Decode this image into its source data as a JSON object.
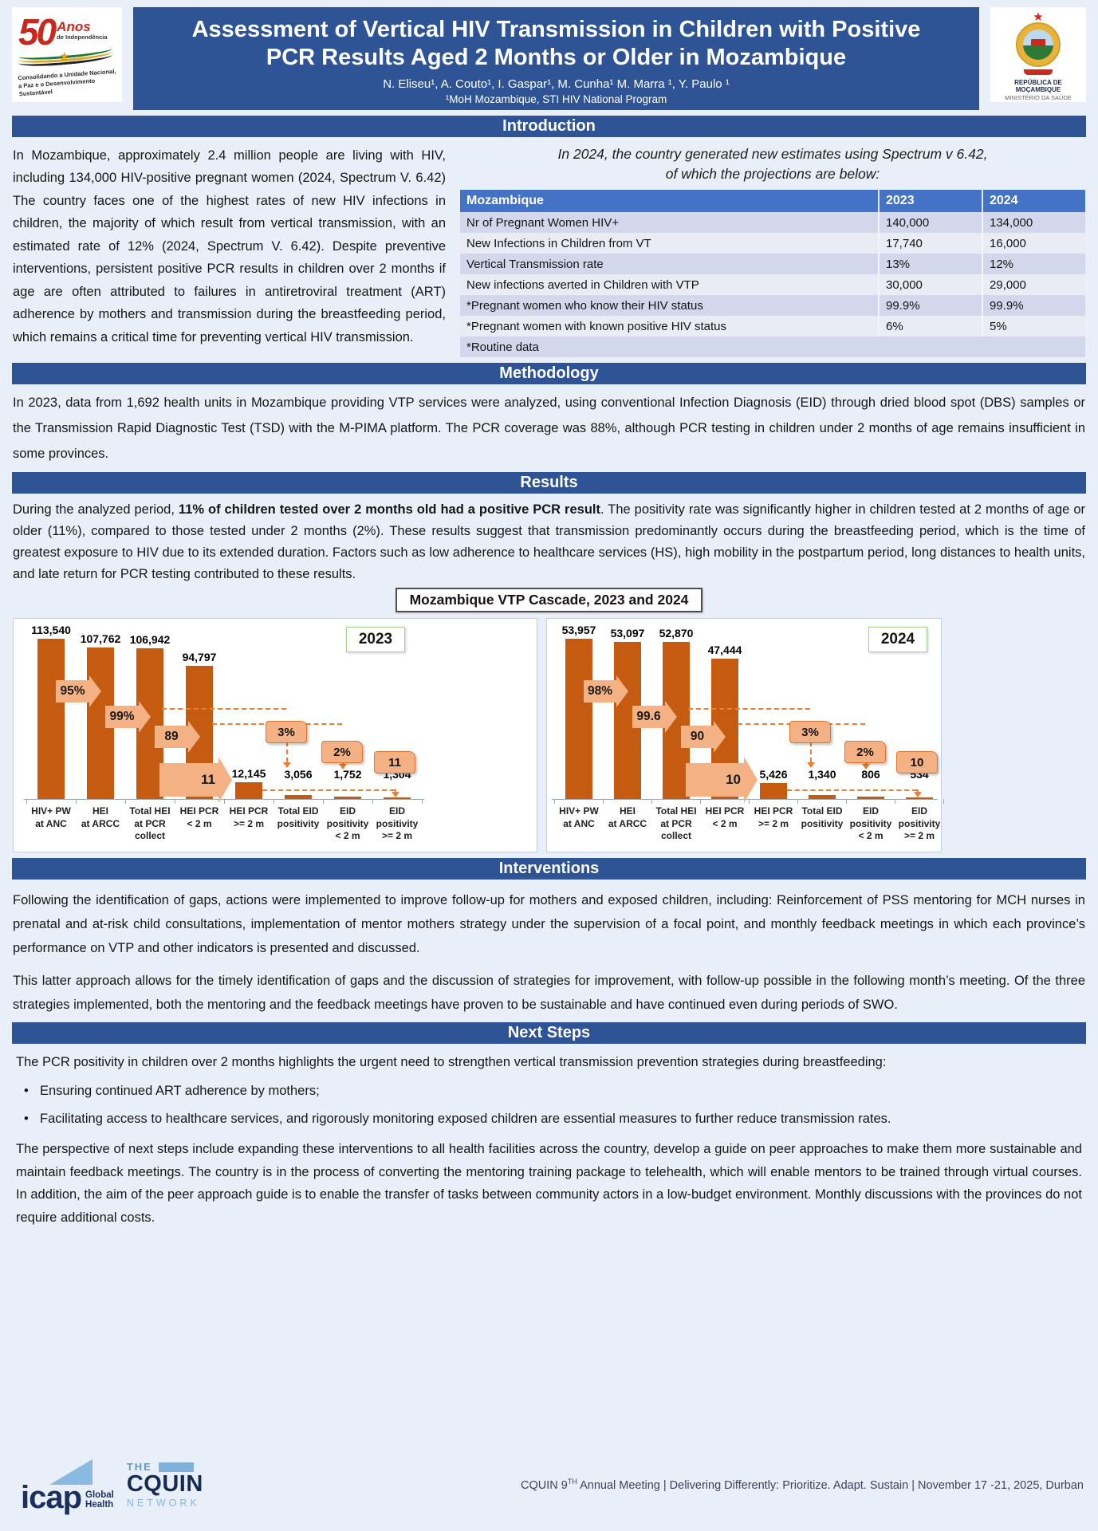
{
  "colors": {
    "accent_blue": "#2e5496",
    "table_header_blue": "#4472c4",
    "row_alt_dark": "#d2d7eb",
    "row_alt_light": "#e9ebf5",
    "bar_orange": "#c55a11",
    "arrow_peach": "#f4b183",
    "dashed_orange": "#ed7d31",
    "year_border_green": "#a9d18e",
    "navy": "#1b2f5e",
    "light_blue": "#8ab9e2",
    "page_bg": "#e9eff8"
  },
  "header": {
    "title_line1": "Assessment of Vertical HIV Transmission in Children with Positive",
    "title_line2": "PCR Results Aged 2 Months or Older in Mozambique",
    "authors": "N. Eliseu¹, A. Couto¹, I. Gaspar¹, M. Cunha¹ M. Marra ¹, Y. Paulo ¹",
    "affiliation": "¹MoH Mozambique, STI HIV National Program",
    "logo_left": {
      "line1": "50",
      "line2": "Anos",
      "line3": "de Independência",
      "tagline1": "Consolidando a Unidade Nacional,",
      "tagline2": "a Paz e o Desenvolvimento Sustentável"
    },
    "logo_right": {
      "line1": "REPÚBLICA DE MOÇAMBIQUE",
      "line2": "MINISTÉRIO DA SAÚDE"
    }
  },
  "introduction": {
    "heading": "Introduction",
    "paragraph": "In Mozambique, approximately 2.4 million people are living with HIV, including 134,000 HIV-positive pregnant women (2024, Spectrum V. 6.42) The country faces one of the highest rates of new HIV infections in children, the majority of which result from vertical transmission, with an estimated rate of 12% (2024, Spectrum V. 6.42). Despite preventive interventions, persistent positive PCR results in children over 2 months if age are often attributed to failures in antiretroviral treatment (ART) adherence by mothers and transmission during the breastfeeding period, which remains a critical time for preventing vertical HIV transmission.",
    "table_caption_line1": "In 2024, the country generated new estimates using Spectrum v 6.42,",
    "table_caption_line2": "of which the projections are below:",
    "table": {
      "header": [
        "Mozambique",
        "2023",
        "2024"
      ],
      "rows": [
        [
          "Nr of Pregnant Women HIV+",
          "140,000",
          "134,000"
        ],
        [
          "New Infections in Children from VT",
          "17,740",
          "16,000"
        ],
        [
          "Vertical Transmission rate",
          "13%",
          "12%"
        ],
        [
          "New infections averted in Children with VTP",
          "30,000",
          "29,000"
        ],
        [
          "*Pregnant women who know their HIV status",
          "99.9%",
          "99.9%"
        ],
        [
          "*Pregnant women with known positive HIV status",
          "6%",
          "5%"
        ],
        [
          "*Routine data",
          "",
          ""
        ]
      ]
    }
  },
  "methodology": {
    "heading": "Methodology",
    "paragraph": "In 2023, data from 1,692 health units in Mozambique providing VTP services were analyzed, using conventional Infection Diagnosis (EID) through dried blood spot (DBS) samples or the Transmission Rapid Diagnostic Test (TSD) with the M-PIMA platform. The PCR coverage was 88%, although PCR testing in children under 2 months of age remains insufficient in some provinces."
  },
  "results": {
    "heading": "Results",
    "p_pre": "During the analyzed period, ",
    "p_bold": "11% of children tested over 2 months old had a positive PCR result",
    "p_post": ". The positivity rate was significantly higher in children tested at 2 months of age or older (11%), compared to those tested under 2 months (2%). These results suggest that transmission predominantly occurs during the breastfeeding period, which is the time of greatest exposure to HIV due to its extended duration. Factors such as low adherence to healthcare services (HS), high mobility in the postpartum period, long distances to health units, and late return for PCR testing contributed to these results.",
    "chart_box_title": "Mozambique VTP Cascade, 2023 and 2024"
  },
  "chart_data": [
    {
      "type": "bar",
      "title": "2023",
      "categories": [
        "HIV+ PW\nat ANC",
        "HEI\nat ARCC",
        "Total HEI\nat PCR\ncollect",
        "HEI PCR\n< 2 m",
        "HEI PCR\n>= 2 m",
        "Total EID\npositivity",
        "EID\npositivity\n< 2 m",
        "EID\npositivity\n>= 2 m"
      ],
      "values": [
        113540,
        107762,
        106942,
        94797,
        12145,
        3056,
        1752,
        1304
      ],
      "value_labels": [
        "113,540",
        "107,762",
        "106,942",
        "94,797",
        "12,145",
        "3,056",
        "1,752",
        "1,304"
      ],
      "arrow_labels": [
        "95%",
        "99%",
        "89",
        "11"
      ],
      "callout_labels": [
        "3%",
        "2%",
        "11"
      ],
      "ylim": [
        0,
        120000
      ],
      "xlabel": "",
      "ylabel": "",
      "legend": "none",
      "grid": false,
      "bar_color": "#c55a11"
    },
    {
      "type": "bar",
      "title": "2024",
      "categories": [
        "HIV+ PW\nat ANC",
        "HEI\nat ARCC",
        "Total HEI\nat PCR\ncollect",
        "HEI PCR\n< 2 m",
        "HEI PCR\n>= 2 m",
        "Total EID\npositivity",
        "EID\npositivity\n< 2 m",
        "EID\npositivity\n>= 2 m"
      ],
      "values": [
        53957,
        53097,
        52870,
        47444,
        5426,
        1340,
        806,
        534
      ],
      "value_labels": [
        "53,957",
        "53,097",
        "52,870",
        "47,444",
        "5,426",
        "1,340",
        "806",
        "534"
      ],
      "arrow_labels": [
        "98%",
        "99.6",
        "90",
        "10"
      ],
      "callout_labels": [
        "3%",
        "2%",
        "10"
      ],
      "ylim": [
        0,
        57000
      ],
      "xlabel": "",
      "ylabel": "",
      "legend": "none",
      "grid": false,
      "bar_color": "#c55a11"
    }
  ],
  "interventions": {
    "heading": "Interventions",
    "p1": "Following the identification of gaps, actions were implemented to improve follow-up for mothers and exposed children, including: Reinforcement of PSS mentoring for MCH nurses in prenatal and at-risk child consultations, implementation of mentor mothers strategy under the supervision of a focal point, and monthly feedback meetings in which each province’s performance on VTP and other indicators is presented and discussed.",
    "p2": "This latter approach allows for the timely identification of gaps and the discussion of strategies for improvement, with follow-up possible in the following month’s meeting. Of the three strategies implemented, both the mentoring and the feedback meetings have proven to be sustainable and have continued even during periods of SWO."
  },
  "next_steps": {
    "heading": "Next Steps",
    "intro": "The PCR positivity in children over 2 months highlights the urgent need to strengthen vertical transmission prevention strategies during breastfeeding:",
    "bullets": [
      "Ensuring continued ART adherence by mothers;",
      "Facilitating access to healthcare services, and rigorously monitoring exposed children are essential measures to further reduce transmission rates."
    ],
    "outro": "The perspective of next steps include expanding these interventions to all health facilities across the country, develop a guide on peer approaches to make them more sustainable and maintain feedback meetings. The country is in the process of converting the mentoring training package to telehealth, which will enable mentors to be trained through virtual courses. In addition, the aim of the peer approach guide is to enable the transfer of tasks between community actors in a low-budget environment. Monthly discussions with the provinces do not require additional costs."
  },
  "footer": {
    "icap": {
      "brand": "icap",
      "sub1": "Global",
      "sub2": "Health"
    },
    "cquin": {
      "the": "THE",
      "brand": "CQUIN",
      "network": "NETWORK"
    },
    "meeting_prefix": "CQUIN 9",
    "meeting_sup": "TH",
    "meeting_rest": " Annual Meeting | Delivering Differently: Prioritize. Adapt. Sustain | November 17 -21, 2025, Durban"
  }
}
